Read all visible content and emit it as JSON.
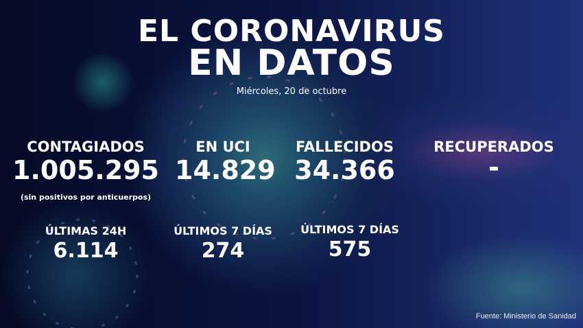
{
  "header": {
    "title_line1": "EL CORONAVIRUS",
    "title_line2": "EN DATOS",
    "date": "Miércoles, 20 de octubre"
  },
  "stats": [
    {
      "label": "CONTAGIADOS",
      "value": "1.005.295",
      "note": "(sin positivos por anticuerpos)"
    },
    {
      "label": "EN UCI",
      "value": "14.829"
    },
    {
      "label": "FALLECIDOS",
      "value": "34.366"
    },
    {
      "label": "RECUPERADOS",
      "value": "-"
    }
  ],
  "recent": [
    {
      "label": "ÚLTIMAS 24H",
      "value": "6.114"
    },
    {
      "label": "ÚLTIMOS 7 DÍAS",
      "value": "274"
    },
    {
      "label": "ÚLTIMOS 7 DÍAS",
      "value": "575"
    }
  ],
  "footer": {
    "source": "Fuente: Ministerio de Sanidad"
  }
}
